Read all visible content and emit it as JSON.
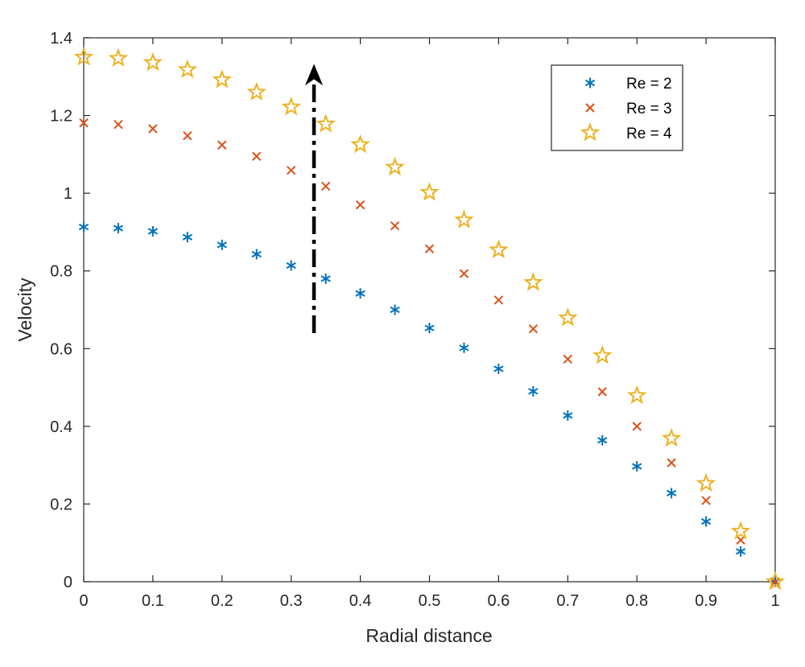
{
  "chart_data": {
    "type": "scatter",
    "title": "",
    "xlabel": "Radial distance",
    "ylabel": "Velocity",
    "xlim": [
      0,
      1
    ],
    "ylim": [
      0,
      1.4
    ],
    "xticks": [
      0,
      0.1,
      0.2,
      0.3,
      0.4,
      0.5,
      0.6,
      0.7,
      0.8,
      0.9,
      1
    ],
    "xtick_labels": [
      "0",
      "0.1",
      "0.2",
      "0.3",
      "0.4",
      "0.5",
      "0.6",
      "0.7",
      "0.8",
      "0.9",
      "1"
    ],
    "yticks": [
      0,
      0.2,
      0.4,
      0.6,
      0.8,
      1,
      1.2,
      1.4
    ],
    "ytick_labels": [
      "0",
      "0.2",
      "0.4",
      "0.6",
      "0.8",
      "1",
      "1.2",
      "1.4"
    ],
    "grid": false,
    "legend_position": "top-right",
    "x": [
      0,
      0.05,
      0.1,
      0.15,
      0.2,
      0.25,
      0.3,
      0.35,
      0.4,
      0.45,
      0.5,
      0.55,
      0.6,
      0.65,
      0.7,
      0.75,
      0.8,
      0.85,
      0.9,
      0.95,
      1
    ],
    "series": [
      {
        "name": "Re = 2",
        "marker": "asterisk",
        "color": "#0072BD",
        "values": [
          0.913,
          0.91,
          0.902,
          0.887,
          0.867,
          0.843,
          0.814,
          0.78,
          0.742,
          0.7,
          0.653,
          0.602,
          0.548,
          0.49,
          0.428,
          0.364,
          0.297,
          0.228,
          0.155,
          0.078,
          0.0
        ]
      },
      {
        "name": "Re = 3",
        "marker": "x",
        "color": "#D95319",
        "values": [
          1.181,
          1.177,
          1.166,
          1.148,
          1.124,
          1.095,
          1.059,
          1.018,
          0.97,
          0.916,
          0.857,
          0.793,
          0.725,
          0.651,
          0.573,
          0.489,
          0.4,
          0.306,
          0.209,
          0.107,
          0.0
        ]
      },
      {
        "name": "Re = 4",
        "marker": "star",
        "color": "#EDB120",
        "values": [
          1.35,
          1.347,
          1.336,
          1.318,
          1.292,
          1.26,
          1.222,
          1.178,
          1.125,
          1.067,
          1.002,
          0.931,
          0.854,
          0.77,
          0.679,
          0.582,
          0.479,
          0.369,
          0.253,
          0.13,
          0.0
        ]
      }
    ],
    "annotations": [
      {
        "type": "arrow",
        "style": "dash-dot",
        "color": "#000000",
        "x": 0.333,
        "y_from": 0.64,
        "y_to": 1.33
      }
    ]
  }
}
